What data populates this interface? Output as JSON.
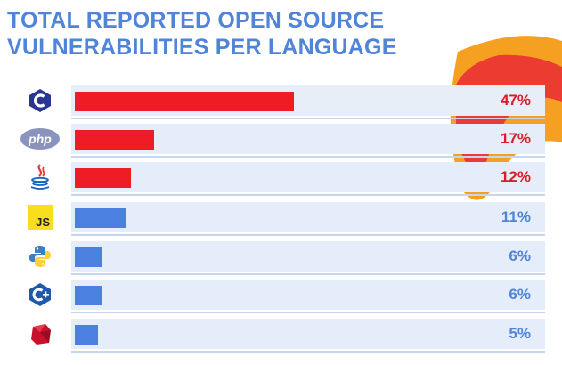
{
  "title": {
    "line1": "TOTAL REPORTED OPEN SOURCE",
    "line2": "VULNERABILITIES PER LANGUAGE"
  },
  "colors": {
    "title": "#4f84d8",
    "highlight_bar": "#ee1c25",
    "highlight_text": "#d81e28",
    "normal_bar": "#4b7fe0",
    "normal_text": "#4f84d8",
    "decoration_orange": "#f5a020",
    "decoration_red": "#ec3b30"
  },
  "chart_data": {
    "type": "bar",
    "orientation": "horizontal",
    "categories": [
      "C",
      "PHP",
      "Java",
      "JavaScript",
      "Python",
      "C++",
      "Ruby"
    ],
    "values": [
      47,
      17,
      12,
      11,
      6,
      6,
      5
    ],
    "value_labels": [
      "47%",
      "17%",
      "12%",
      "11%",
      "6%",
      "6%",
      "5%"
    ],
    "highlighted": [
      true,
      true,
      true,
      false,
      false,
      false,
      false
    ],
    "icons": [
      "c-language-icon",
      "php-icon",
      "java-icon",
      "javascript-icon",
      "python-icon",
      "cplusplus-icon",
      "ruby-icon"
    ],
    "xlim": [
      0,
      100
    ],
    "grid": false,
    "legend": "none"
  }
}
